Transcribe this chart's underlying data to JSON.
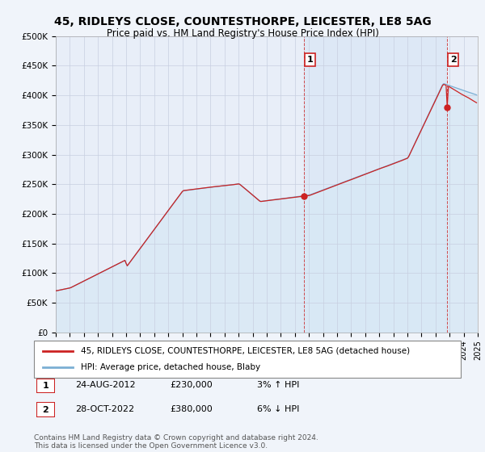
{
  "title": "45, RIDLEYS CLOSE, COUNTESTHORPE, LEICESTER, LE8 5AG",
  "subtitle": "Price paid vs. HM Land Registry's House Price Index (HPI)",
  "ylabel_ticks": [
    "£0",
    "£50K",
    "£100K",
    "£150K",
    "£200K",
    "£250K",
    "£300K",
    "£350K",
    "£400K",
    "£450K",
    "£500K"
  ],
  "ytick_values": [
    0,
    50000,
    100000,
    150000,
    200000,
    250000,
    300000,
    350000,
    400000,
    450000,
    500000
  ],
  "ylim": [
    0,
    500000
  ],
  "xlim_start": 1995.25,
  "xlim_end": 2025.0,
  "hpi_color": "#7bafd4",
  "hpi_fill_color": "#d6e8f5",
  "price_color": "#cc2222",
  "sale1_date": 2012.65,
  "sale1_price": 230000,
  "sale2_date": 2022.83,
  "sale2_price": 380000,
  "legend_price_label": "45, RIDLEYS CLOSE, COUNTESTHORPE, LEICESTER, LE8 5AG (detached house)",
  "legend_hpi_label": "HPI: Average price, detached house, Blaby",
  "annotation1": "1",
  "annotation2": "2",
  "note1_date": "24-AUG-2012",
  "note1_price": "£230,000",
  "note1_hpi": "3% ↑ HPI",
  "note2_date": "28-OCT-2022",
  "note2_price": "£380,000",
  "note2_hpi": "6% ↓ HPI",
  "footer": "Contains HM Land Registry data © Crown copyright and database right 2024.\nThis data is licensed under the Open Government Licence v3.0.",
  "background_color": "#f0f4fa",
  "plot_bg_color": "#e8eef8",
  "grid_color": "#c8cfe0",
  "title_fontsize": 10,
  "subtitle_fontsize": 8.5,
  "tick_fontsize": 7.5,
  "legend_fontsize": 7.5
}
